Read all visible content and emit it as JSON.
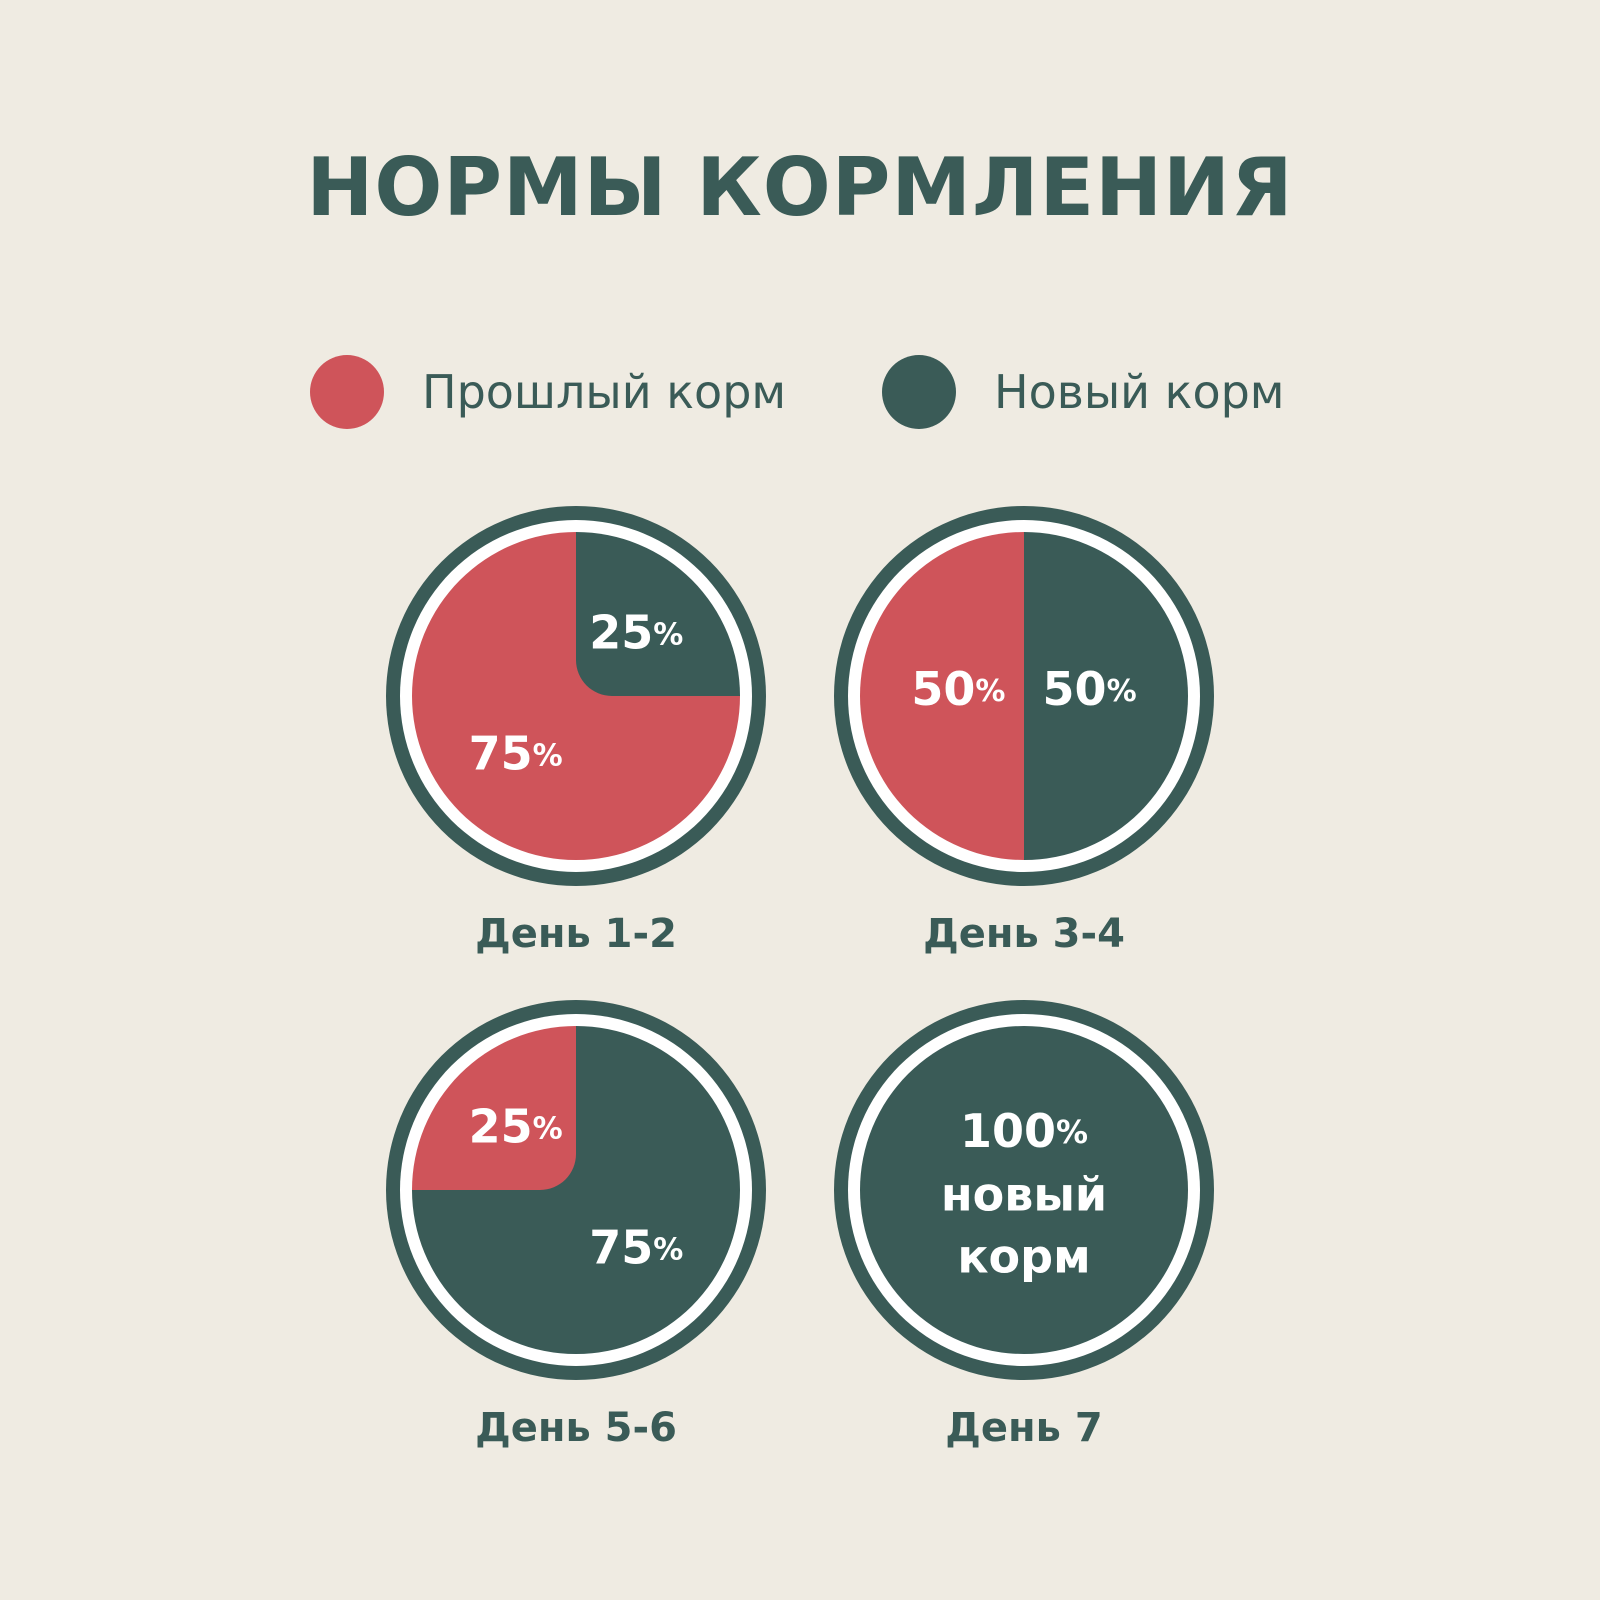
{
  "title": "НОРМЫ КОРМЛЕНИЯ",
  "colors": {
    "background": "#efebe2",
    "old_feed": "#cf545a",
    "new_feed": "#3a5b57",
    "text": "#3a5b57",
    "label": "#ffffff"
  },
  "legend": [
    {
      "name": "Прошлый корм",
      "color": "#cf545a"
    },
    {
      "name": "Новый корм",
      "color": "#3a5b57"
    }
  ],
  "chart_data": [
    {
      "type": "pie",
      "title": "День 1-2",
      "slices": [
        {
          "series": "Прошлый корм",
          "value": 75,
          "label": "75",
          "unit": "%"
        },
        {
          "series": "Новый корм",
          "value": 25,
          "label": "25",
          "unit": "%"
        }
      ]
    },
    {
      "type": "pie",
      "title": "День 3-4",
      "slices": [
        {
          "series": "Прошлый корм",
          "value": 50,
          "label": "50",
          "unit": "%"
        },
        {
          "series": "Новый корм",
          "value": 50,
          "label": "50",
          "unit": "%"
        }
      ]
    },
    {
      "type": "pie",
      "title": "День 5-6",
      "slices": [
        {
          "series": "Прошлый корм",
          "value": 25,
          "label": "25",
          "unit": "%"
        },
        {
          "series": "Новый корм",
          "value": 75,
          "label": "75",
          "unit": "%"
        }
      ]
    },
    {
      "type": "pie",
      "title": "День 7",
      "slices": [
        {
          "series": "Новый корм",
          "value": 100
        }
      ],
      "center_text": {
        "value": "100",
        "unit": "%",
        "line2": "новый",
        "line3": "корм"
      }
    }
  ]
}
